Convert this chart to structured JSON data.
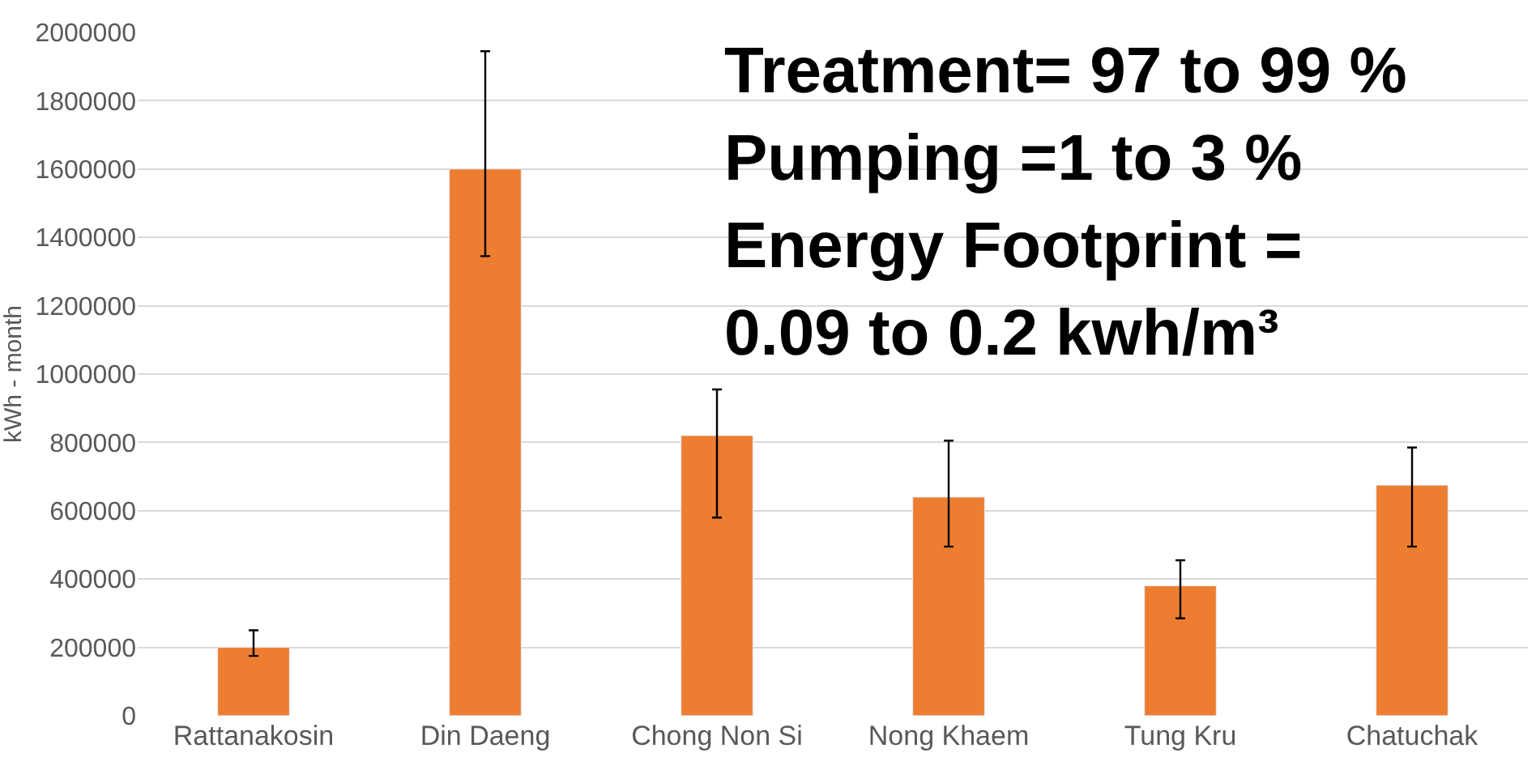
{
  "chart_data": {
    "type": "bar",
    "ylabel": "kWh - month",
    "categories": [
      "Rattanakosin",
      "Din Daeng",
      "Chong Non Si",
      "Nong Khaem",
      "Tung Kru",
      "Chatuchak"
    ],
    "values": [
      200000,
      1600000,
      820000,
      640000,
      380000,
      675000
    ],
    "errors": [
      [
        175000,
        250000
      ],
      [
        1345000,
        1945000
      ],
      [
        580000,
        955000
      ],
      [
        495000,
        805000
      ],
      [
        285000,
        455000
      ],
      [
        495000,
        785000
      ]
    ],
    "color": "#ed7d31",
    "ylim": [
      0,
      2000000
    ],
    "yticks": [
      0,
      200000,
      400000,
      600000,
      800000,
      1000000,
      1200000,
      1400000,
      1600000,
      1800000,
      2000000
    ],
    "grid": "y",
    "annotations": [
      "Treatment= 97 to 99 %",
      "Pumping =1 to 3 %",
      "Energy Footprint =",
      "0.09 to 0.2 kwh/m³"
    ]
  }
}
